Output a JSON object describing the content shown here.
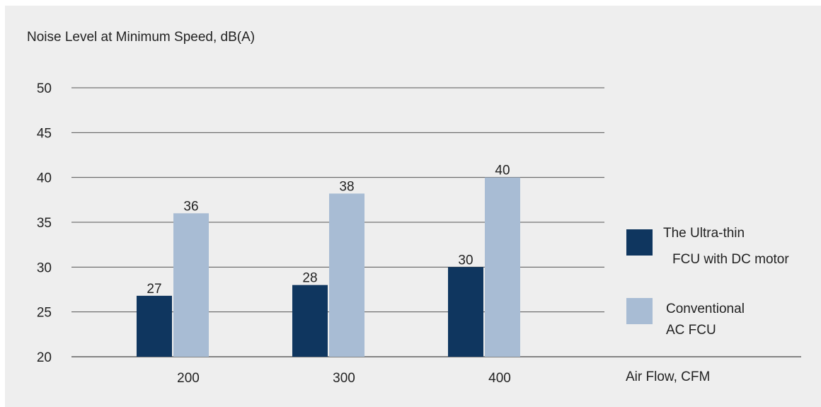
{
  "chart_data": {
    "type": "bar",
    "title": "Noise Level at Minimum Speed, dB(A)",
    "xlabel": "Air Flow, CFM",
    "ylabel": "",
    "categories": [
      "200",
      "300",
      "400"
    ],
    "ylim": [
      20,
      50
    ],
    "yticks": [
      20,
      25,
      30,
      35,
      40,
      45,
      50
    ],
    "grid": true,
    "legend_position": "right",
    "series": [
      {
        "name": "The Ultra-thin FCU with DC motor",
        "legend_lines": [
          "The Ultra-thin",
          "FCU with DC motor"
        ],
        "color": "#0f365f",
        "values": [
          26.8,
          28,
          30
        ],
        "labels": [
          "27",
          "28",
          "30"
        ]
      },
      {
        "name": "Conventional AC FCU",
        "legend_lines": [
          "Conventional",
          "AC FCU"
        ],
        "color": "#a8bcd4",
        "values": [
          36,
          38.2,
          40
        ],
        "labels": [
          "36",
          "38",
          "40"
        ]
      }
    ]
  }
}
